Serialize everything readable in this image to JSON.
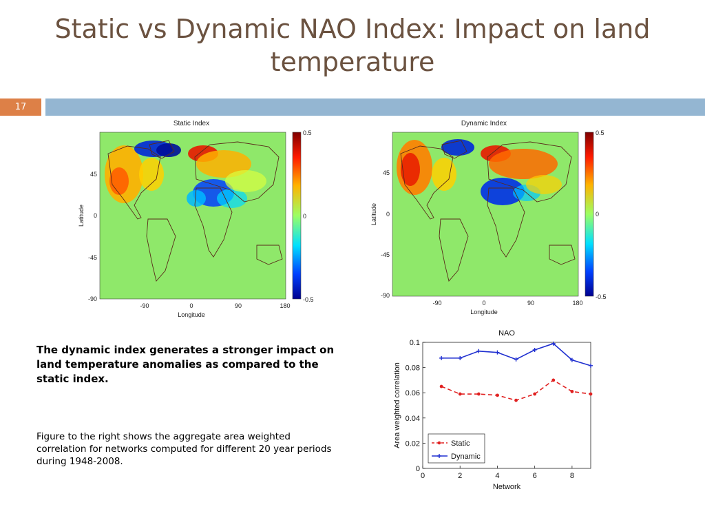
{
  "slide": {
    "title": "Static vs Dynamic NAO Index: Impact on land temperature",
    "number": "17"
  },
  "maps": [
    {
      "title": "Static Index",
      "xlabel": "Longitude",
      "ylabel": "Latitude",
      "xticks": [
        "-90",
        "0",
        "90",
        "180"
      ],
      "yticks": [
        "45",
        "0",
        "-45",
        "-90"
      ],
      "colorbar_ticks": [
        "0.5",
        "0",
        "-0.5"
      ]
    },
    {
      "title": "Dynamic Index",
      "xlabel": "Longitude",
      "ylabel": "Latitude",
      "xticks": [
        "-90",
        "0",
        "90",
        "180"
      ],
      "yticks": [
        "45",
        "0",
        "-45",
        "-90"
      ],
      "colorbar_ticks": [
        "0.5",
        "0",
        "-0.5"
      ]
    }
  ],
  "text": {
    "main": "The dynamic index generates a stronger impact on land temperature anomalies as compared to the static index.",
    "caption": "Figure to the right shows the aggregate area weighted correlation for networks computed for different 20 year periods during 1948-2008."
  },
  "chart_data": {
    "type": "line",
    "title": "NAO",
    "xlabel": "Network",
    "ylabel": "Area weighted correlation",
    "xlim": [
      0,
      9
    ],
    "ylim": [
      0,
      0.1
    ],
    "xticks": [
      0,
      2,
      4,
      6,
      8
    ],
    "yticks": [
      0,
      0.02,
      0.04,
      0.06,
      0.08,
      0.1
    ],
    "legend": "bottom-left",
    "x": [
      1,
      2,
      3,
      4,
      5,
      6,
      7,
      8,
      9
    ],
    "series": [
      {
        "name": "Static",
        "color": "#e02020",
        "style": "dashed",
        "marker": "dot",
        "values": [
          0.065,
          0.059,
          0.059,
          0.058,
          0.054,
          0.059,
          0.07,
          0.061,
          0.059
        ]
      },
      {
        "name": "Dynamic",
        "color": "#1f2fd0",
        "style": "solid",
        "marker": "plus",
        "values": [
          0.0875,
          0.0875,
          0.093,
          0.092,
          0.0865,
          0.094,
          0.099,
          0.086,
          0.0815
        ]
      }
    ]
  }
}
